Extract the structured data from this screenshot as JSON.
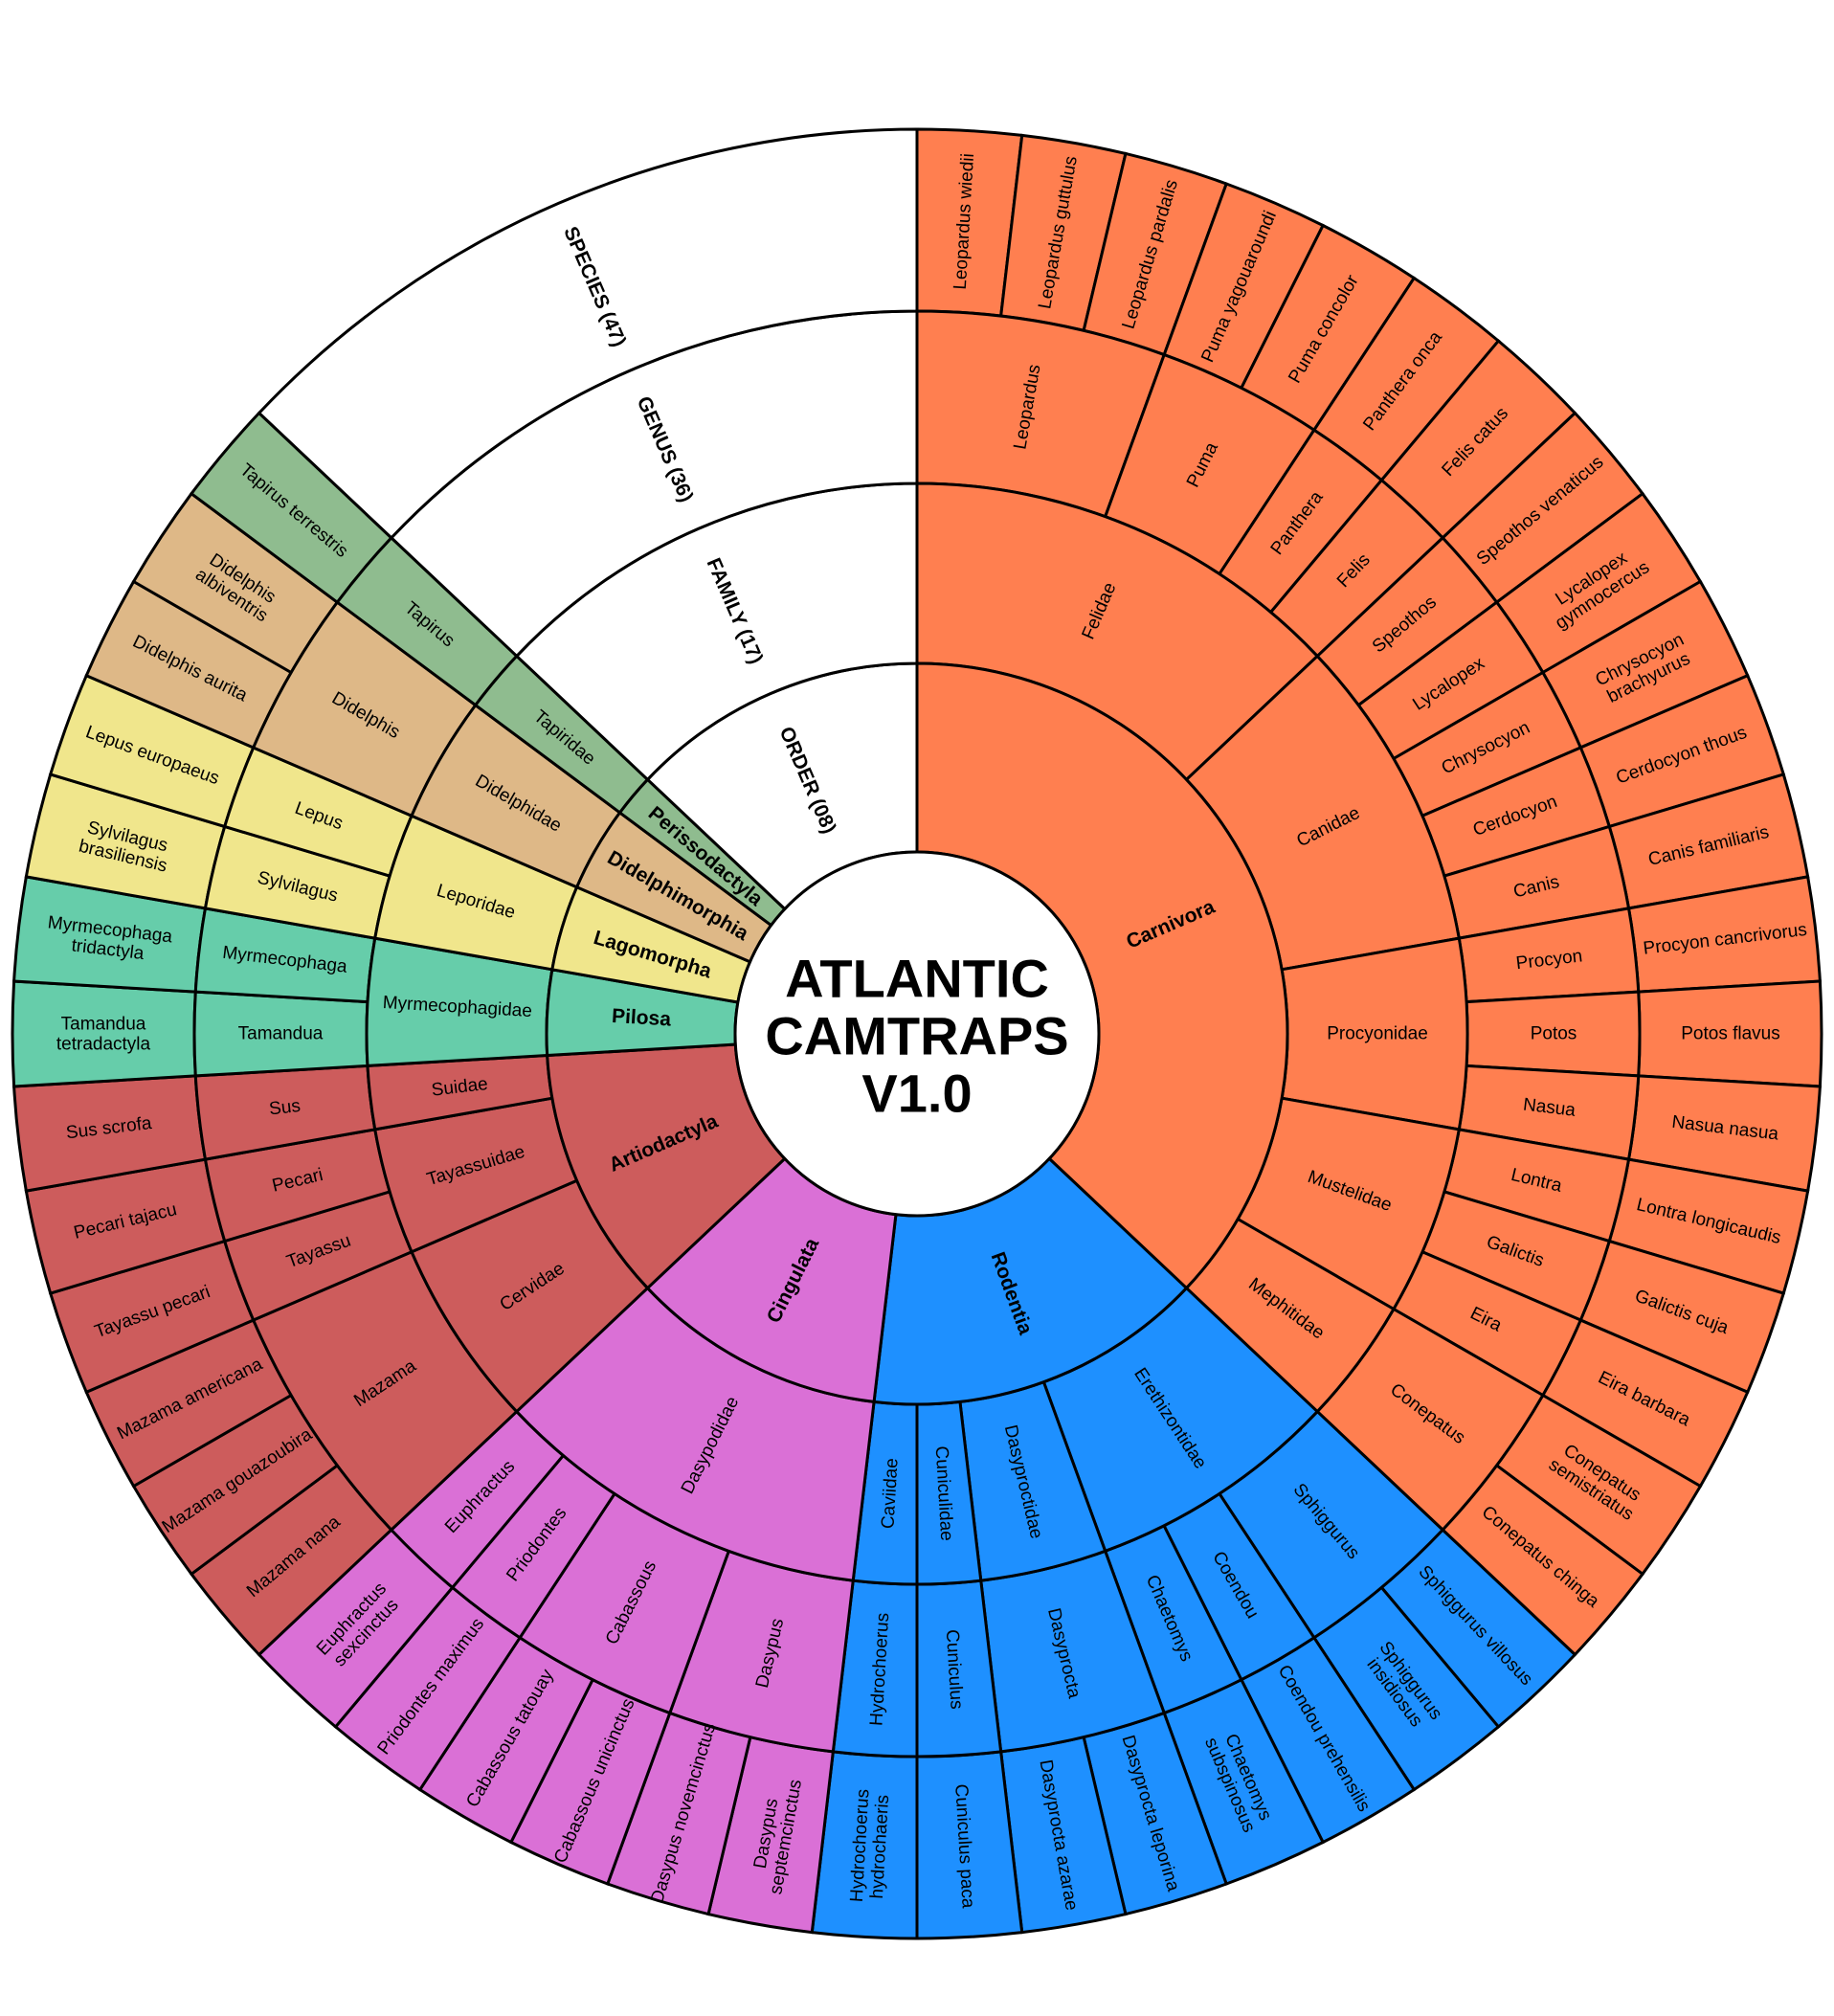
{
  "title_lines": [
    "ATLANTIC",
    "CAMTRAPS",
    "V1.0"
  ],
  "ring_headers": [
    "SPECIES (47)",
    "GENUS  (36)",
    "FAMILY (17)",
    "ORDER (08)"
  ],
  "colors": {
    "Carnivora": "#ff7f50",
    "Rodentia": "#1e90ff",
    "Cingulata": "#da70d6",
    "Artiodactyla": "#cd5c5c",
    "Pilosa": "#66cdaa",
    "Lagomorpha": "#f0e68c",
    "Didelphimorphia": "#deb887",
    "Perissodactyla": "#8fbc8f",
    "header": "#ffffff"
  },
  "orders": [
    {
      "name": "Carnivora",
      "families": [
        {
          "name": "Felidae",
          "genera": [
            {
              "name": "Leopardus",
              "species": [
                "Leopardus wiedii",
                "Leopardus guttulus",
                "Leopardus pardalis"
              ]
            },
            {
              "name": "Puma",
              "species": [
                "Puma yagouaroundi",
                "Puma concolor"
              ]
            },
            {
              "name": "Panthera",
              "species": [
                "Panthera onca"
              ]
            },
            {
              "name": "Felis",
              "species": [
                "Felis catus"
              ]
            }
          ]
        },
        {
          "name": "Canidae",
          "genera": [
            {
              "name": "Speothos",
              "species": [
                "Speothos venaticus"
              ]
            },
            {
              "name": "Lycalopex",
              "species": [
                "Lycalopex gymnocercus"
              ]
            },
            {
              "name": "Chrysocyon",
              "species": [
                "Chrysocyon brachyurus"
              ]
            },
            {
              "name": "Cerdocyon",
              "species": [
                "Cerdocyon thous"
              ]
            },
            {
              "name": "Canis",
              "species": [
                "Canis familiaris"
              ]
            }
          ]
        },
        {
          "name": "Procyonidae",
          "genera": [
            {
              "name": "Procyon",
              "species": [
                "Procyon cancrivorus"
              ]
            },
            {
              "name": "Potos",
              "species": [
                "Potos flavus"
              ]
            },
            {
              "name": "Nasua",
              "species": [
                "Nasua nasua"
              ]
            }
          ]
        },
        {
          "name": "Mustelidae",
          "genera": [
            {
              "name": "Lontra",
              "species": [
                "Lontra longicaudis"
              ]
            },
            {
              "name": "Galictis",
              "species": [
                "Galictis cuja"
              ]
            },
            {
              "name": "Eira",
              "species": [
                "Eira barbara"
              ]
            }
          ]
        },
        {
          "name": "Mephitidae",
          "genera": [
            {
              "name": "Conepatus",
              "species": [
                "Conepatus semistriatus",
                "Conepatus chinga"
              ]
            }
          ]
        }
      ]
    },
    {
      "name": "Rodentia",
      "families": [
        {
          "name": "Erethizontidae",
          "genera": [
            {
              "name": "Sphiggurus",
              "species": [
                "Sphiggurus villosus",
                "Sphiggurus insidiosus"
              ]
            },
            {
              "name": "Coendou",
              "species": [
                "Coendou prehensilis"
              ]
            },
            {
              "name": "Chaetomys",
              "species": [
                "Chaetomys subspinosus"
              ]
            }
          ]
        },
        {
          "name": "Dasyproctidae",
          "genera": [
            {
              "name": "Dasyprocta",
              "species": [
                "Dasyprocta leporina",
                "Dasyprocta azarae"
              ]
            }
          ]
        },
        {
          "name": "Cuniculidae",
          "genera": [
            {
              "name": "Cuniculus",
              "species": [
                "Cuniculus paca"
              ]
            }
          ]
        },
        {
          "name": "Caviidae",
          "genera": [
            {
              "name": "Hydrochoerus",
              "species": [
                "Hydrochoerus hydrochaeris"
              ]
            }
          ]
        }
      ]
    },
    {
      "name": "Cingulata",
      "families": [
        {
          "name": "Dasypodidae",
          "genera": [
            {
              "name": "Dasypus",
              "species": [
                "Dasypus septemcinctus",
                "Dasypus novemcinctus"
              ]
            },
            {
              "name": "Cabassous",
              "species": [
                "Cabassous unicinctus",
                "Cabassous tatouay"
              ]
            },
            {
              "name": "Priodontes",
              "species": [
                "Priodontes maximus"
              ]
            },
            {
              "name": "Euphractus",
              "species": [
                "Euphractus sexcinctus"
              ]
            }
          ]
        }
      ]
    },
    {
      "name": "Artiodactyla",
      "families": [
        {
          "name": "Cervidae",
          "genera": [
            {
              "name": "Mazama",
              "species": [
                "Mazama nana",
                "Mazama gouazoubira",
                "Mazama americana"
              ]
            }
          ]
        },
        {
          "name": "Tayassuidae",
          "genera": [
            {
              "name": "Tayassu",
              "species": [
                "Tayassu pecari"
              ]
            },
            {
              "name": "Pecari",
              "species": [
                "Pecari tajacu"
              ]
            }
          ]
        },
        {
          "name": "Suidae",
          "genera": [
            {
              "name": "Sus",
              "species": [
                "Sus scrofa"
              ]
            }
          ]
        }
      ]
    },
    {
      "name": "Pilosa",
      "families": [
        {
          "name": "Myrmecophagidae",
          "genera": [
            {
              "name": "Tamandua",
              "species": [
                "Tamandua tetradactyla"
              ]
            },
            {
              "name": "Myrmecophaga",
              "species": [
                "Myrmecophaga tridactyla"
              ]
            }
          ]
        }
      ]
    },
    {
      "name": "Lagomorpha",
      "families": [
        {
          "name": "Leporidae",
          "genera": [
            {
              "name": "Sylvilagus",
              "species": [
                "Sylvilagus brasiliensis"
              ]
            },
            {
              "name": "Lepus",
              "species": [
                "Lepus europaeus"
              ]
            }
          ]
        }
      ]
    },
    {
      "name": "Didelphimorphia",
      "families": [
        {
          "name": "Didelphidae",
          "genera": [
            {
              "name": "Didelphis",
              "species": [
                "Didelphis aurita",
                "Didelphis albiventris"
              ]
            }
          ]
        }
      ]
    },
    {
      "name": "Perissodactyla",
      "families": [
        {
          "name": "Tapiridae",
          "genera": [
            {
              "name": "Tapirus",
              "species": [
                "Tapirus terrestris"
              ]
            }
          ]
        }
      ]
    }
  ]
}
